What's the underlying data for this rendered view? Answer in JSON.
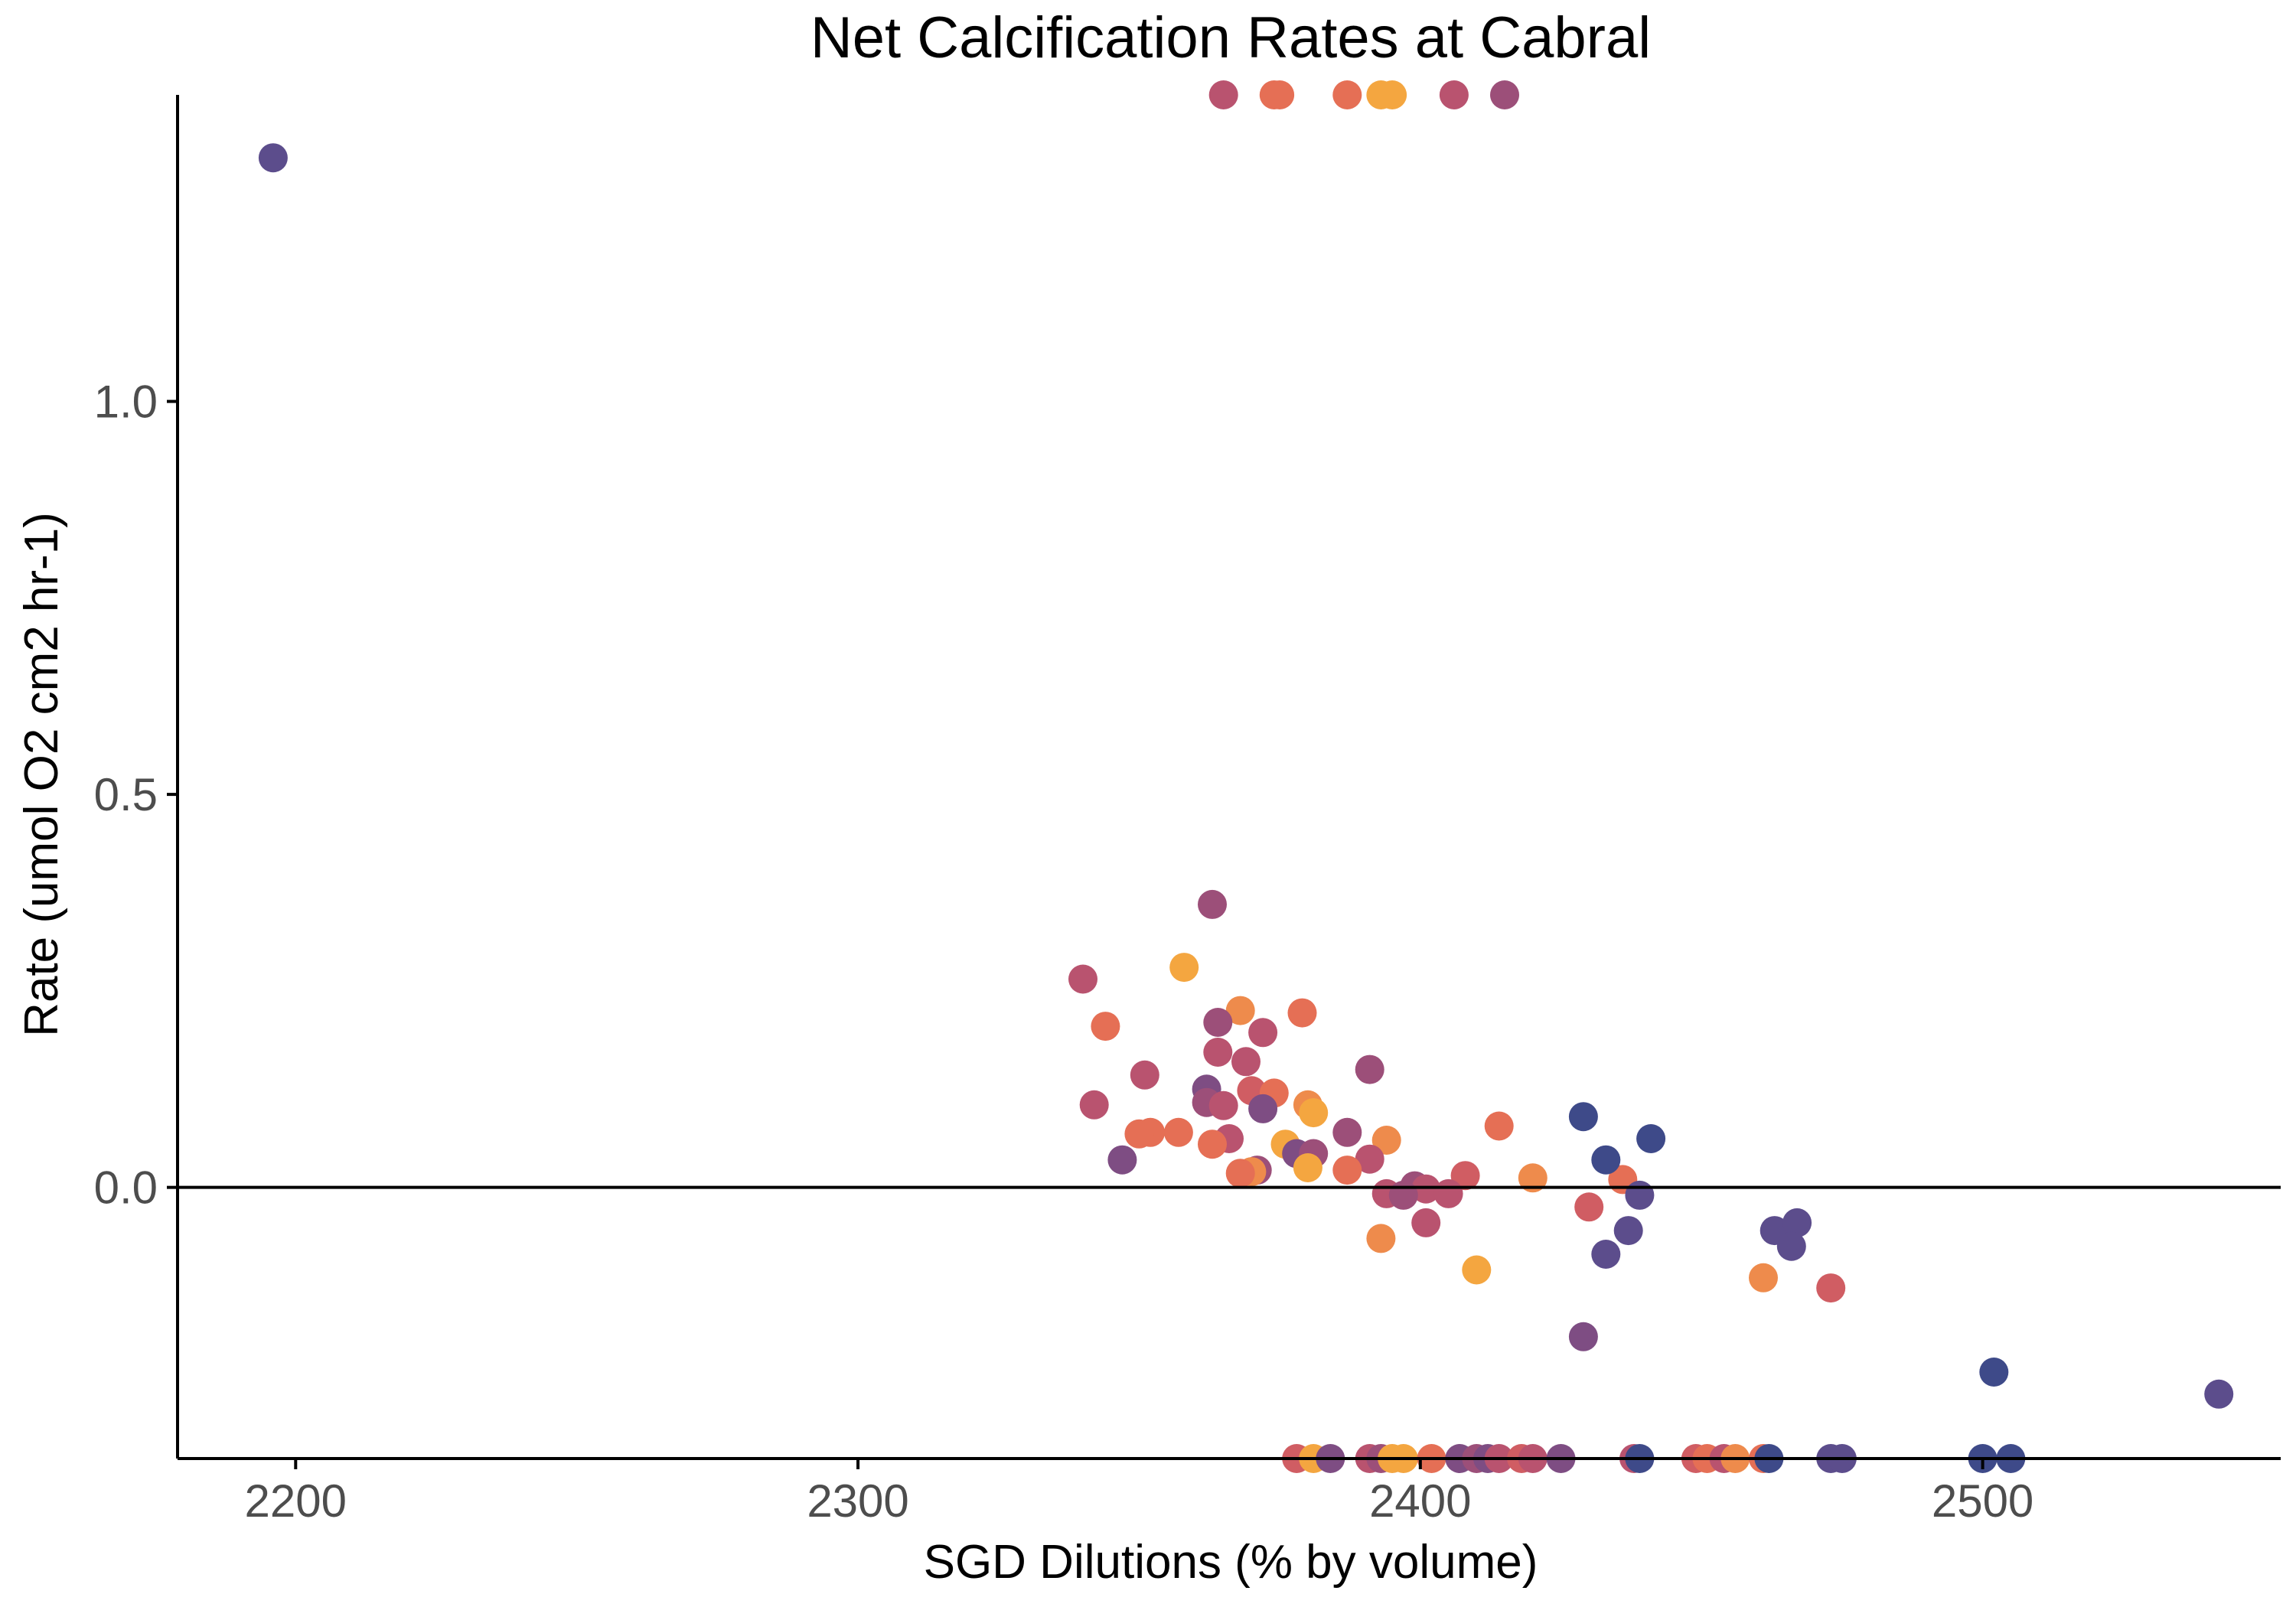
{
  "chart_data": {
    "type": "scatter",
    "title": "Net Calcification Rates at Cabral",
    "xlabel": "SGD Dilutions (% by volume)",
    "ylabel": "Rate (umol O2 cm2 hr-1)",
    "xlim": [
      2179,
      2553
    ],
    "ylim": [
      -0.345,
      1.39
    ],
    "x_ticks": [
      2200,
      2300,
      2400,
      2500
    ],
    "x_tick_labels": [
      "2200",
      "2300",
      "2400",
      "2500"
    ],
    "y_ticks": [
      0.0,
      0.5,
      1.0
    ],
    "y_tick_labels": [
      "0.0",
      "0.5",
      "1.0"
    ],
    "reference_line_y": 0,
    "grid": false,
    "legend": "none",
    "point_colors": {
      "navy": "#3e4a89",
      "indigo": "#5c4d8c",
      "purple": "#7e4d83",
      "plum": "#9c4f79",
      "rose": "#b9536f",
      "red": "#d05d63",
      "coral": "#e56f55",
      "orange": "#ee8b4c",
      "amber": "#f4a640"
    },
    "points": [
      {
        "x": 2196,
        "y": 1.31,
        "c": "indigo"
      },
      {
        "x": 2365,
        "y": 1.39,
        "c": "rose"
      },
      {
        "x": 2374,
        "y": 1.39,
        "c": "coral"
      },
      {
        "x": 2375,
        "y": 1.39,
        "c": "coral"
      },
      {
        "x": 2387,
        "y": 1.39,
        "c": "coral"
      },
      {
        "x": 2393,
        "y": 1.39,
        "c": "amber"
      },
      {
        "x": 2395,
        "y": 1.39,
        "c": "amber"
      },
      {
        "x": 2406,
        "y": 1.39,
        "c": "rose"
      },
      {
        "x": 2415,
        "y": 1.39,
        "c": "plum"
      },
      {
        "x": 2363,
        "y": 0.36,
        "c": "plum"
      },
      {
        "x": 2358,
        "y": 0.28,
        "c": "amber"
      },
      {
        "x": 2340,
        "y": 0.265,
        "c": "rose"
      },
      {
        "x": 2344,
        "y": 0.205,
        "c": "coral"
      },
      {
        "x": 2368,
        "y": 0.225,
        "c": "orange"
      },
      {
        "x": 2379,
        "y": 0.222,
        "c": "coral"
      },
      {
        "x": 2364,
        "y": 0.21,
        "c": "plum"
      },
      {
        "x": 2372,
        "y": 0.197,
        "c": "rose"
      },
      {
        "x": 2364,
        "y": 0.172,
        "c": "rose"
      },
      {
        "x": 2369,
        "y": 0.16,
        "c": "rose"
      },
      {
        "x": 2351,
        "y": 0.143,
        "c": "rose"
      },
      {
        "x": 2391,
        "y": 0.15,
        "c": "plum"
      },
      {
        "x": 2362,
        "y": 0.125,
        "c": "purple"
      },
      {
        "x": 2370,
        "y": 0.123,
        "c": "red"
      },
      {
        "x": 2374,
        "y": 0.12,
        "c": "coral"
      },
      {
        "x": 2362,
        "y": 0.108,
        "c": "plum"
      },
      {
        "x": 2342,
        "y": 0.105,
        "c": "rose"
      },
      {
        "x": 2365,
        "y": 0.104,
        "c": "rose"
      },
      {
        "x": 2372,
        "y": 0.1,
        "c": "purple"
      },
      {
        "x": 2380,
        "y": 0.105,
        "c": "orange"
      },
      {
        "x": 2381,
        "y": 0.095,
        "c": "amber"
      },
      {
        "x": 2352,
        "y": 0.07,
        "c": "coral"
      },
      {
        "x": 2350,
        "y": 0.068,
        "c": "coral"
      },
      {
        "x": 2357,
        "y": 0.07,
        "c": "coral"
      },
      {
        "x": 2366,
        "y": 0.062,
        "c": "rose"
      },
      {
        "x": 2363,
        "y": 0.055,
        "c": "coral"
      },
      {
        "x": 2376,
        "y": 0.055,
        "c": "amber"
      },
      {
        "x": 2387,
        "y": 0.07,
        "c": "plum"
      },
      {
        "x": 2394,
        "y": 0.06,
        "c": "orange"
      },
      {
        "x": 2414,
        "y": 0.078,
        "c": "coral"
      },
      {
        "x": 2347,
        "y": 0.035,
        "c": "purple"
      },
      {
        "x": 2378,
        "y": 0.043,
        "c": "purple"
      },
      {
        "x": 2381,
        "y": 0.043,
        "c": "plum"
      },
      {
        "x": 2391,
        "y": 0.036,
        "c": "rose"
      },
      {
        "x": 2371,
        "y": 0.022,
        "c": "plum"
      },
      {
        "x": 2370,
        "y": 0.02,
        "c": "orange"
      },
      {
        "x": 2368,
        "y": 0.018,
        "c": "coral"
      },
      {
        "x": 2380,
        "y": 0.025,
        "c": "amber"
      },
      {
        "x": 2387,
        "y": 0.022,
        "c": "coral"
      },
      {
        "x": 2408,
        "y": 0.015,
        "c": "red"
      },
      {
        "x": 2420,
        "y": 0.012,
        "c": "orange"
      },
      {
        "x": 2399,
        "y": 0.002,
        "c": "plum"
      },
      {
        "x": 2401,
        "y": -0.002,
        "c": "rose"
      },
      {
        "x": 2394,
        "y": -0.008,
        "c": "rose"
      },
      {
        "x": 2397,
        "y": -0.01,
        "c": "plum"
      },
      {
        "x": 2405,
        "y": -0.008,
        "c": "rose"
      },
      {
        "x": 2436,
        "y": 0.01,
        "c": "coral"
      },
      {
        "x": 2429,
        "y": 0.09,
        "c": "navy"
      },
      {
        "x": 2433,
        "y": 0.035,
        "c": "navy"
      },
      {
        "x": 2441,
        "y": 0.062,
        "c": "navy"
      },
      {
        "x": 2439,
        "y": -0.01,
        "c": "indigo"
      },
      {
        "x": 2430,
        "y": -0.025,
        "c": "red"
      },
      {
        "x": 2401,
        "y": -0.045,
        "c": "rose"
      },
      {
        "x": 2437,
        "y": -0.055,
        "c": "indigo"
      },
      {
        "x": 2393,
        "y": -0.065,
        "c": "orange"
      },
      {
        "x": 2433,
        "y": -0.085,
        "c": "indigo"
      },
      {
        "x": 2410,
        "y": -0.105,
        "c": "amber"
      },
      {
        "x": 2463,
        "y": -0.055,
        "c": "indigo"
      },
      {
        "x": 2467,
        "y": -0.045,
        "c": "indigo"
      },
      {
        "x": 2466,
        "y": -0.075,
        "c": "indigo"
      },
      {
        "x": 2461,
        "y": -0.115,
        "c": "orange"
      },
      {
        "x": 2473,
        "y": -0.128,
        "c": "red"
      },
      {
        "x": 2429,
        "y": -0.19,
        "c": "purple"
      },
      {
        "x": 2502,
        "y": -0.235,
        "c": "navy"
      },
      {
        "x": 2542,
        "y": -0.263,
        "c": "indigo"
      },
      {
        "x": 2378,
        "y": -0.345,
        "c": "red"
      },
      {
        "x": 2381,
        "y": -0.345,
        "c": "amber"
      },
      {
        "x": 2384,
        "y": -0.345,
        "c": "purple"
      },
      {
        "x": 2391,
        "y": -0.345,
        "c": "rose"
      },
      {
        "x": 2393,
        "y": -0.345,
        "c": "plum"
      },
      {
        "x": 2395,
        "y": -0.345,
        "c": "amber"
      },
      {
        "x": 2397,
        "y": -0.345,
        "c": "amber"
      },
      {
        "x": 2402,
        "y": -0.345,
        "c": "coral"
      },
      {
        "x": 2407,
        "y": -0.345,
        "c": "purple"
      },
      {
        "x": 2410,
        "y": -0.345,
        "c": "plum"
      },
      {
        "x": 2412,
        "y": -0.345,
        "c": "purple"
      },
      {
        "x": 2414,
        "y": -0.345,
        "c": "rose"
      },
      {
        "x": 2418,
        "y": -0.345,
        "c": "red"
      },
      {
        "x": 2420,
        "y": -0.345,
        "c": "rose"
      },
      {
        "x": 2425,
        "y": -0.345,
        "c": "purple"
      },
      {
        "x": 2438,
        "y": -0.345,
        "c": "rose"
      },
      {
        "x": 2439,
        "y": -0.345,
        "c": "navy"
      },
      {
        "x": 2449,
        "y": -0.345,
        "c": "red"
      },
      {
        "x": 2451,
        "y": -0.345,
        "c": "coral"
      },
      {
        "x": 2454,
        "y": -0.345,
        "c": "rose"
      },
      {
        "x": 2456,
        "y": -0.345,
        "c": "orange"
      },
      {
        "x": 2461,
        "y": -0.345,
        "c": "coral"
      },
      {
        "x": 2462,
        "y": -0.345,
        "c": "navy"
      },
      {
        "x": 2473,
        "y": -0.345,
        "c": "indigo"
      },
      {
        "x": 2475,
        "y": -0.345,
        "c": "indigo"
      },
      {
        "x": 2500,
        "y": -0.345,
        "c": "navy"
      },
      {
        "x": 2505,
        "y": -0.345,
        "c": "navy"
      }
    ]
  }
}
